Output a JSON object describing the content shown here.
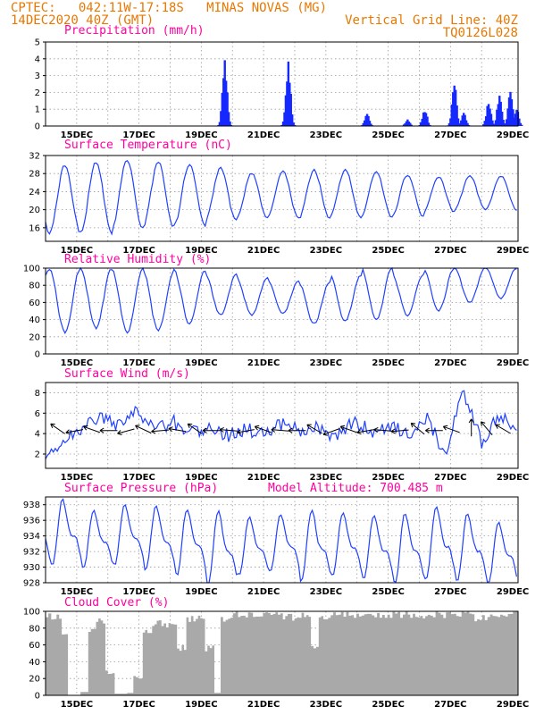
{
  "header": {
    "line1_left": "CPTEC:   042:11W-17:18S   MINAS NOVAS (MG)",
    "line2_left": "14DEC2020 40Z (GMT)",
    "line1_right": "Vertical Grid Line: 40Z",
    "line2_right": "TQ0126L028"
  },
  "colors": {
    "header": "#e87800",
    "title": "#ff00a0",
    "line": "#2040ff",
    "precip": "#1428ff",
    "cloud": "#a9a9a9",
    "grid": "#9a9a9a"
  },
  "x_tick_labels": [
    "15DEC",
    "17DEC",
    "19DEC",
    "21DEC",
    "23DEC",
    "25DEC",
    "27DEC",
    "29DEC"
  ],
  "chart_data": [
    {
      "type": "bar",
      "title": "Precipitation (mm/h)",
      "x_range_days": [
        13.83,
        29.0
      ],
      "ylim": [
        0,
        5
      ],
      "yticks": [
        0,
        1,
        2,
        3,
        4,
        5
      ],
      "events": [
        {
          "day": 19.58,
          "peak": 4.1
        },
        {
          "day": 21.62,
          "peak": 3.9
        },
        {
          "day": 24.15,
          "peak": 0.8
        },
        {
          "day": 25.45,
          "peak": 0.4
        },
        {
          "day": 26.0,
          "peak": 1.1
        },
        {
          "day": 26.95,
          "peak": 2.6
        },
        {
          "day": 27.25,
          "peak": 0.8
        },
        {
          "day": 28.05,
          "peak": 1.5
        },
        {
          "day": 28.4,
          "peak": 2.0
        },
        {
          "day": 28.75,
          "peak": 2.3
        },
        {
          "day": 28.95,
          "peak": 1.0
        }
      ]
    },
    {
      "type": "line",
      "title": "Surface Temperature (nC)",
      "ylim": [
        13,
        32
      ],
      "yticks": [
        16,
        20,
        24,
        28,
        32
      ],
      "daily_max": [
        29.8,
        30.5,
        31.0,
        30.5,
        30.0,
        29.2,
        28.0,
        28.5,
        28.7,
        28.8,
        28.4,
        27.7,
        27.2,
        27.5,
        27.5
      ],
      "daily_min": [
        15.0,
        15.0,
        15.8,
        16.2,
        16.5,
        17.5,
        18.0,
        18.2,
        18.0,
        18.4,
        18.2,
        18.5,
        19.5,
        20.0,
        20.0
      ]
    },
    {
      "type": "line",
      "title": "Relative Humidity (%)",
      "ylim": [
        0,
        100
      ],
      "yticks": [
        0,
        20,
        40,
        60,
        80,
        100
      ],
      "daily_max": [
        100,
        100,
        99,
        97,
        97,
        92,
        88,
        85,
        83,
        92,
        100,
        92,
        100,
        100,
        100
      ],
      "daily_min": [
        25,
        30,
        25,
        27,
        35,
        45,
        45,
        47,
        35,
        38,
        40,
        45,
        50,
        60,
        65
      ]
    },
    {
      "type": "line",
      "title": "Surface Wind (m/s)",
      "ylim": [
        0.6,
        9.0
      ],
      "yticks": [
        2,
        4,
        6,
        8
      ],
      "values": [
        1.7,
        3.6,
        4.5,
        5.8,
        4.8,
        6.2,
        4.3,
        5.2,
        4.0,
        4.8,
        3.8,
        4.5,
        3.8,
        5.0,
        4.2,
        4.6,
        3.5,
        5.2,
        4.3,
        4.8,
        3.8,
        5.4,
        2.0,
        8.2,
        3.2,
        6.0,
        3.5
      ],
      "arrow_days": [
        14.3,
        14.85,
        15.4,
        15.95,
        16.5,
        17.05,
        17.6,
        18.15,
        18.7,
        19.25,
        19.8,
        20.35,
        20.9,
        21.45,
        22.0,
        22.55,
        23.1,
        23.65,
        24.2,
        24.75,
        25.3,
        25.85,
        26.4,
        26.95,
        27.5,
        28.05,
        28.6
      ],
      "arrow_dir_deg": [
        215,
        170,
        200,
        180,
        165,
        205,
        175,
        190,
        215,
        180,
        185,
        170,
        200,
        185,
        180,
        210,
        160,
        200,
        170,
        185,
        175,
        220,
        180,
        200,
        270,
        230,
        210
      ]
    },
    {
      "type": "line",
      "title": "Surface Pressure (hPa)",
      "annotation": "Model Altitude: 700.485 m",
      "ylim": [
        928,
        939
      ],
      "yticks": [
        928,
        930,
        932,
        934,
        936,
        938
      ],
      "daily_max": [
        937.8,
        936.5,
        937.2,
        937.0,
        936.6,
        936.2,
        935.6,
        936.0,
        936.4,
        936.2,
        935.8,
        936.0,
        936.8,
        936.0,
        935.0
      ],
      "daily_min": [
        931.5,
        931.0,
        931.4,
        930.8,
        930.2,
        929.0,
        930.0,
        930.4,
        929.5,
        930.0,
        929.6,
        929.2,
        929.8,
        929.4,
        929.0
      ]
    },
    {
      "type": "area",
      "title": "Cloud Cover (%)",
      "ylim": [
        0,
        100
      ],
      "yticks": [
        0,
        20,
        40,
        60,
        80,
        100
      ],
      "segments": [
        [
          13.83,
          98
        ],
        [
          14.1,
          97
        ],
        [
          14.35,
          80
        ],
        [
          14.55,
          0
        ],
        [
          14.95,
          4
        ],
        [
          15.2,
          80
        ],
        [
          15.45,
          92
        ],
        [
          15.75,
          30
        ],
        [
          16.05,
          2
        ],
        [
          16.45,
          3
        ],
        [
          16.65,
          25
        ],
        [
          16.95,
          82
        ],
        [
          17.25,
          90
        ],
        [
          17.55,
          88
        ],
        [
          17.85,
          85
        ],
        [
          18.05,
          60
        ],
        [
          18.35,
          95
        ],
        [
          18.65,
          98
        ],
        [
          18.95,
          60
        ],
        [
          19.25,
          3
        ],
        [
          19.45,
          95
        ],
        [
          19.85,
          100
        ],
        [
          20.25,
          100
        ],
        [
          20.65,
          99
        ],
        [
          21.05,
          100
        ],
        [
          21.45,
          98
        ],
        [
          21.75,
          96
        ],
        [
          22.05,
          99
        ],
        [
          22.35,
          60
        ],
        [
          22.6,
          95
        ],
        [
          22.9,
          100
        ],
        [
          25.3,
          100
        ],
        [
          25.7,
          99
        ],
        [
          26.1,
          100
        ],
        [
          27.6,
          96
        ],
        [
          28.1,
          100
        ]
      ]
    }
  ]
}
